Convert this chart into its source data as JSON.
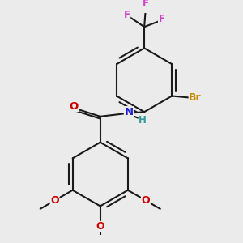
{
  "bg_color": "#ebebeb",
  "bond_color": "#1a1a1a",
  "bond_lw": 1.5,
  "atom_colors": {
    "F": "#cc44cc",
    "Br": "#cc8800",
    "N": "#2222cc",
    "O": "#cc0000",
    "H": "#339999",
    "C": "#1a1a1a"
  },
  "font_size": 8.5
}
